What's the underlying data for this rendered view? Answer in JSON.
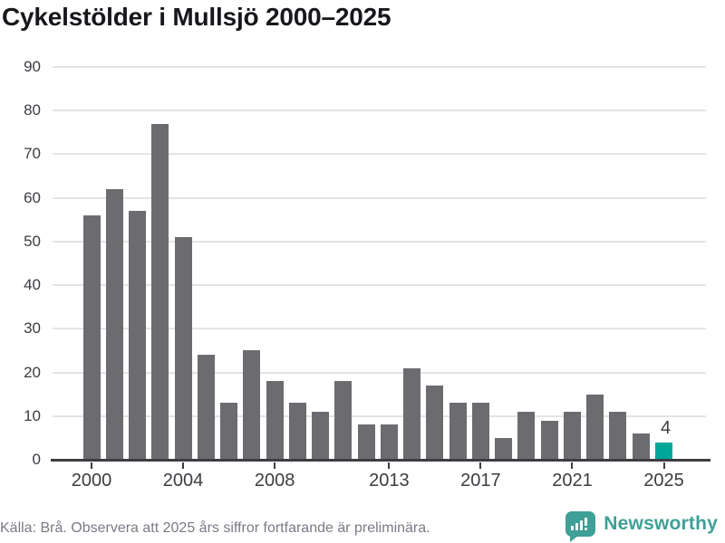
{
  "title": "Cykelstölder i Mullsjö 2000–2025",
  "chart_data": {
    "type": "bar",
    "title": "Cykelstölder i Mullsjö 2000–2025",
    "categories": [
      "2000",
      "2001",
      "2002",
      "2003",
      "2004",
      "2005",
      "2006",
      "2007",
      "2008",
      "2009",
      "2010",
      "2011",
      "2012",
      "2013",
      "2014",
      "2015",
      "2016",
      "2017",
      "2018",
      "2019",
      "2020",
      "2021",
      "2022",
      "2023",
      "2024",
      "2025"
    ],
    "values": [
      56,
      62,
      57,
      77,
      51,
      24,
      13,
      25,
      18,
      13,
      11,
      18,
      8,
      8,
      21,
      17,
      13,
      13,
      5,
      11,
      9,
      11,
      15,
      11,
      6,
      4
    ],
    "xlabel": "",
    "ylabel": "",
    "ylim": [
      0,
      90
    ],
    "yticks": [
      0,
      10,
      20,
      30,
      40,
      50,
      60,
      70,
      80,
      90
    ],
    "xtick_labels": [
      "2000",
      "2004",
      "2008",
      "2013",
      "2017",
      "2021",
      "2025"
    ],
    "grid": "horizontal",
    "legend": "none",
    "highlight_category": "2025",
    "annotation": {
      "category": "2025",
      "text": "4"
    },
    "colors": {
      "bar": "#6B6B70",
      "highlight": "#00A69A",
      "grid": "#E4E4E4",
      "axis": "#3D3D42",
      "tick_label": "#3C3C42",
      "annotation": "#3C3C42"
    }
  },
  "footer": {
    "source": "Källa: Brå. Observera att 2025 års siffror fortfarande är preliminära."
  },
  "branding": {
    "name": "Newsworthy",
    "color": "#3EA096",
    "icon": "bar-chart-speech-bubble-icon"
  }
}
